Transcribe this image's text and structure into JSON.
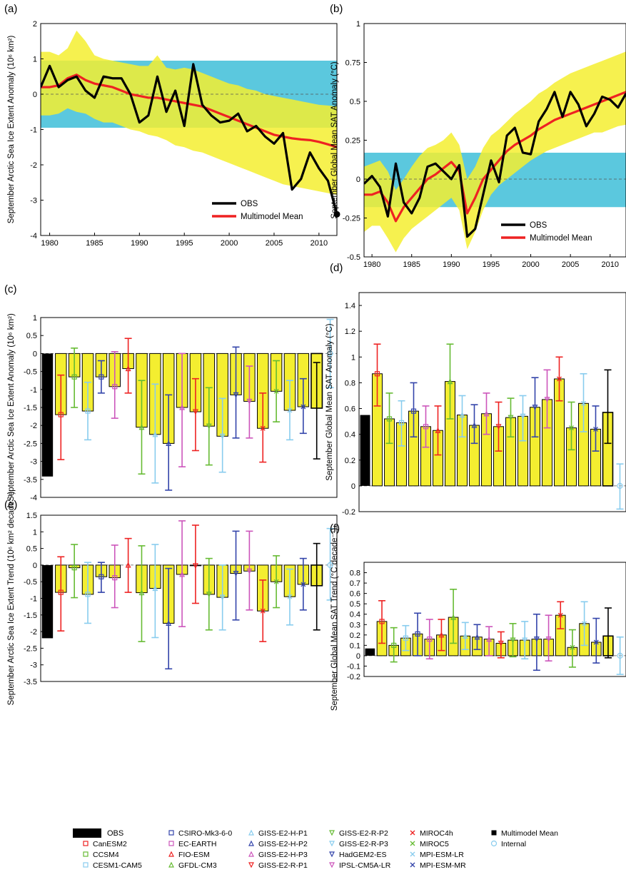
{
  "chart_data": [
    {
      "panel": "(a)",
      "type": "line",
      "ylabel": "September Arctic Sea Ice Extent Anomaly (10⁶ km²)",
      "xlim": [
        1979,
        2012
      ],
      "ylim": [
        -4,
        2
      ],
      "xticks": [
        1980,
        1985,
        1990,
        1995,
        2000,
        2005,
        2010
      ],
      "yticks": [
        -4,
        -3,
        -2,
        -1,
        0,
        1,
        2
      ],
      "x": [
        1979,
        1980,
        1981,
        1982,
        1983,
        1984,
        1985,
        1986,
        1987,
        1988,
        1989,
        1990,
        1991,
        1992,
        1993,
        1994,
        1995,
        1996,
        1997,
        1998,
        1999,
        2000,
        2001,
        2002,
        2003,
        2004,
        2005,
        2006,
        2007,
        2008,
        2009,
        2010,
        2011,
        2012
      ],
      "series": [
        {
          "name": "OBS",
          "color": "#000000",
          "values": [
            0.2,
            0.8,
            0.2,
            0.4,
            0.5,
            0.1,
            -0.1,
            0.5,
            0.45,
            0.45,
            0.0,
            -0.8,
            -0.6,
            0.5,
            -0.5,
            0.1,
            -0.9,
            0.85,
            -0.3,
            -0.6,
            -0.8,
            -0.75,
            -0.55,
            -1.05,
            -0.9,
            -1.2,
            -1.4,
            -1.1,
            -2.7,
            -2.4,
            -1.65,
            -2.1,
            -2.45,
            -3.4
          ]
        },
        {
          "name": "Multimodel Mean",
          "color": "#ee2222",
          "values": [
            0.2,
            0.2,
            0.25,
            0.45,
            0.55,
            0.4,
            0.3,
            0.25,
            0.2,
            0.1,
            0.0,
            -0.05,
            -0.1,
            -0.1,
            -0.15,
            -0.2,
            -0.25,
            -0.3,
            -0.35,
            -0.45,
            -0.55,
            -0.65,
            -0.75,
            -0.85,
            -0.95,
            -1.05,
            -1.15,
            -1.2,
            -1.25,
            -1.28,
            -1.3,
            -1.35,
            -1.42,
            -1.5
          ]
        }
      ],
      "bands": [
        {
          "color": "#5bc8de",
          "lower": -0.95,
          "upper": 0.95
        },
        {
          "color": "#f4ee30",
          "lower": [
            -0.6,
            -0.6,
            -0.55,
            -0.4,
            -0.5,
            -0.55,
            -0.7,
            -0.8,
            -0.8,
            -0.9,
            -1.0,
            -1.05,
            -1.15,
            -1.2,
            -1.3,
            -1.45,
            -1.5,
            -1.6,
            -1.65,
            -1.75,
            -1.85,
            -1.95,
            -2.05,
            -2.15,
            -2.25,
            -2.35,
            -2.45,
            -2.55,
            -2.6,
            -2.65,
            -2.7,
            -2.75,
            -2.8,
            -2.85
          ],
          "upper": [
            1.2,
            1.2,
            1.1,
            1.3,
            1.8,
            1.5,
            1.1,
            1.0,
            0.95,
            0.9,
            0.85,
            0.8,
            0.8,
            1.1,
            0.75,
            0.7,
            0.75,
            0.7,
            0.6,
            0.5,
            0.4,
            0.3,
            0.25,
            0.15,
            0.1,
            0.0,
            -0.05,
            -0.1,
            -0.15,
            -0.2,
            -0.25,
            -0.3,
            -0.32,
            -0.35
          ]
        }
      ],
      "legend": [
        "OBS",
        "Multimodel Mean"
      ],
      "legend_position": "bottom-right"
    },
    {
      "panel": "(b)",
      "type": "line",
      "ylabel": "September Global Mean SAT Anomaly (°C)",
      "xlim": [
        1979,
        2012
      ],
      "ylim": [
        -0.5,
        1
      ],
      "xticks": [
        1980,
        1985,
        1990,
        1995,
        2000,
        2005,
        2010
      ],
      "yticks": [
        -0.5,
        -0.25,
        0,
        0.25,
        0.5,
        0.75,
        1
      ],
      "x": [
        1979,
        1980,
        1981,
        1982,
        1983,
        1984,
        1985,
        1986,
        1987,
        1988,
        1989,
        1990,
        1991,
        1992,
        1993,
        1994,
        1995,
        1996,
        1997,
        1998,
        1999,
        2000,
        2001,
        2002,
        2003,
        2004,
        2005,
        2006,
        2007,
        2008,
        2009,
        2010,
        2011,
        2012
      ],
      "series": [
        {
          "name": "OBS",
          "color": "#000000",
          "values": [
            -0.03,
            0.02,
            -0.05,
            -0.24,
            0.1,
            -0.15,
            -0.22,
            -0.12,
            0.08,
            0.1,
            0.05,
            0.0,
            0.09,
            -0.37,
            -0.32,
            -0.1,
            0.12,
            -0.02,
            0.28,
            0.33,
            0.17,
            0.16,
            0.37,
            0.45,
            0.56,
            0.4,
            0.56,
            0.48,
            0.34,
            0.42,
            0.53,
            0.51,
            0.46,
            0.55
          ]
        },
        {
          "name": "Multimodel Mean",
          "color": "#ee2222",
          "values": [
            -0.1,
            -0.1,
            -0.08,
            -0.15,
            -0.27,
            -0.18,
            -0.12,
            -0.06,
            0.0,
            0.03,
            0.07,
            0.11,
            0.05,
            -0.22,
            -0.12,
            0.0,
            0.06,
            0.12,
            0.18,
            0.22,
            0.25,
            0.28,
            0.32,
            0.35,
            0.38,
            0.4,
            0.42,
            0.44,
            0.46,
            0.48,
            0.5,
            0.52,
            0.54,
            0.56
          ]
        }
      ],
      "bands": [
        {
          "color": "#5bc8de",
          "lower": -0.18,
          "upper": 0.17
        },
        {
          "color": "#f4ee30",
          "lower": [
            -0.34,
            -0.3,
            -0.3,
            -0.38,
            -0.47,
            -0.38,
            -0.32,
            -0.28,
            -0.24,
            -0.2,
            -0.16,
            -0.12,
            -0.2,
            -0.45,
            -0.34,
            -0.2,
            -0.1,
            -0.04,
            0.0,
            0.04,
            0.08,
            0.12,
            0.15,
            0.18,
            0.2,
            0.22,
            0.24,
            0.26,
            0.28,
            0.3,
            0.3,
            0.32,
            0.34,
            0.35
          ],
          "upper": [
            0.08,
            0.1,
            0.12,
            0.05,
            -0.07,
            0.0,
            0.08,
            0.15,
            0.2,
            0.22,
            0.25,
            0.3,
            0.22,
            0.0,
            0.08,
            0.2,
            0.28,
            0.32,
            0.37,
            0.42,
            0.46,
            0.5,
            0.55,
            0.58,
            0.62,
            0.65,
            0.68,
            0.7,
            0.72,
            0.74,
            0.76,
            0.78,
            0.8,
            0.82
          ]
        }
      ],
      "legend": [
        "OBS",
        "Multimodel Mean"
      ],
      "legend_position": "bottom-right"
    },
    {
      "panel": "(c)",
      "type": "bar",
      "ylabel": "September Arctic Sea Ice Extent Anomaly (10⁶ km²)",
      "ylim": [
        -4,
        1
      ],
      "yticks": [
        -4,
        -3.5,
        -3,
        -2.5,
        -2,
        -1.5,
        -1,
        -0.5,
        0,
        0.5,
        1
      ],
      "obs": -3.42,
      "values": [
        -1.7,
        -0.65,
        -1.6,
        -0.65,
        -0.92,
        -0.42,
        -2.05,
        -2.25,
        -2.5,
        -1.5,
        -1.62,
        -2.02,
        -2.3,
        -1.15,
        -1.33,
        -2.08,
        -1.05,
        -1.58,
        -1.48,
        -1.52
      ],
      "error_low": [
        -2.95,
        -1.5,
        -2.4,
        -1.1,
        -1.8,
        -1.1,
        -3.35,
        -3.6,
        -3.8,
        -3.15,
        -2.7,
        -3.1,
        -3.3,
        -2.35,
        -2.35,
        -3.02,
        -1.9,
        -2.4,
        -2.22,
        -2.93
      ],
      "error_high": [
        -0.6,
        0.15,
        -0.8,
        -0.2,
        0.05,
        0.42,
        -0.75,
        -0.85,
        -1.15,
        0.0,
        -0.7,
        -0.95,
        -1.25,
        0.18,
        -0.35,
        -1.1,
        -0.2,
        -0.75,
        -0.7,
        -0.25
      ],
      "internal": {
        "value": 0.0,
        "low": -0.95,
        "high": 0.95
      }
    },
    {
      "panel": "(d)",
      "type": "bar",
      "ylabel": "September Global Mean SAT Anomaly (°C)",
      "ylim": [
        -0.2,
        1.5
      ],
      "yticks": [
        -0.2,
        0,
        0.2,
        0.4,
        0.6,
        0.8,
        1,
        1.2,
        1.4
      ],
      "obs": 0.55,
      "values": [
        0.87,
        0.52,
        0.49,
        0.58,
        0.46,
        0.43,
        0.81,
        0.55,
        0.47,
        0.56,
        0.46,
        0.53,
        0.54,
        0.61,
        0.67,
        0.83,
        0.45,
        0.64,
        0.44,
        0.57
      ],
      "error_low": [
        0.62,
        0.33,
        0.31,
        0.38,
        0.3,
        0.24,
        0.52,
        0.38,
        0.33,
        0.4,
        0.27,
        0.38,
        0.35,
        0.38,
        0.45,
        0.66,
        0.28,
        0.42,
        0.27,
        0.33
      ],
      "error_high": [
        1.1,
        0.72,
        0.66,
        0.8,
        0.62,
        0.62,
        1.1,
        0.7,
        0.63,
        0.72,
        0.65,
        0.68,
        0.7,
        0.84,
        0.9,
        1.0,
        0.65,
        0.87,
        0.62,
        0.9
      ],
      "internal": {
        "value": 0.0,
        "low": -0.18,
        "high": 0.17
      }
    },
    {
      "panel": "(e)",
      "type": "bar",
      "ylabel": "September Arctic Sea Ice Extent Trend (10⁶ km² decade⁻¹)",
      "ylim": [
        -3.5,
        1.5
      ],
      "yticks": [
        -3.5,
        -3,
        -2.5,
        -2,
        -1.5,
        -1,
        -0.5,
        0,
        0.5,
        1,
        1.5
      ],
      "obs": -2.2,
      "values": [
        -0.82,
        -0.08,
        -0.88,
        -0.35,
        -0.38,
        0.0,
        -0.83,
        -0.7,
        -1.75,
        -0.28,
        -0.02,
        -0.88,
        -0.97,
        -0.25,
        -0.18,
        -1.38,
        -0.5,
        -0.95,
        -0.58,
        -0.62
      ],
      "error_low": [
        -1.98,
        -0.98,
        -1.75,
        -0.82,
        -1.28,
        -0.82,
        -2.3,
        -2.18,
        -3.12,
        -1.85,
        -1.15,
        -1.95,
        -1.95,
        -1.65,
        -1.35,
        -2.3,
        -1.28,
        -1.8,
        -1.35,
        -1.95
      ],
      "error_high": [
        0.25,
        0.62,
        0.08,
        0.08,
        0.6,
        0.8,
        0.58,
        0.62,
        -0.1,
        1.33,
        1.2,
        0.2,
        0.0,
        1.02,
        1.02,
        -0.45,
        0.28,
        -0.12,
        0.2,
        0.65
      ],
      "internal": {
        "value": 0.0,
        "low": -1.05,
        "high": 1.1
      }
    },
    {
      "panel": "(f)",
      "type": "bar",
      "ylabel": "September Global Mean SAT Trend (°C decade⁻¹)",
      "ylim": [
        -0.2,
        0.9
      ],
      "yticks": [
        -0.2,
        -0.1,
        0,
        0.1,
        0.2,
        0.3,
        0.4,
        0.5,
        0.6,
        0.7,
        0.8
      ],
      "obs": 0.07,
      "values": [
        0.33,
        0.1,
        0.17,
        0.21,
        0.16,
        0.2,
        0.37,
        0.19,
        0.18,
        0.16,
        0.12,
        0.15,
        0.15,
        0.16,
        0.16,
        0.39,
        0.08,
        0.31,
        0.13,
        0.19
      ],
      "error_low": [
        0.12,
        -0.06,
        0.05,
        0.0,
        -0.03,
        0.05,
        0.12,
        0.06,
        0.06,
        0.0,
        -0.02,
        -0.01,
        -0.03,
        -0.14,
        -0.05,
        0.26,
        -0.11,
        0.1,
        -0.07,
        -0.02
      ],
      "error_high": [
        0.53,
        0.27,
        0.29,
        0.41,
        0.35,
        0.35,
        0.64,
        0.32,
        0.3,
        0.28,
        0.23,
        0.31,
        0.33,
        0.4,
        0.39,
        0.52,
        0.25,
        0.52,
        0.36,
        0.46
      ],
      "internal": {
        "value": 0.0,
        "low": -0.18,
        "high": 0.18
      }
    }
  ],
  "models": [
    {
      "name": "CanESM2",
      "color": "#ee2222",
      "marker": "square"
    },
    {
      "name": "CCSM4",
      "color": "#66bb33",
      "marker": "square"
    },
    {
      "name": "CESM1-CAM5",
      "color": "#88ccee",
      "marker": "square"
    },
    {
      "name": "CSIRO-Mk3-6-0",
      "color": "#3344aa",
      "marker": "square"
    },
    {
      "name": "EC-EARTH",
      "color": "#cc55bb",
      "marker": "square"
    },
    {
      "name": "FIO-ESM",
      "color": "#ee2222",
      "marker": "triangle-up"
    },
    {
      "name": "GFDL-CM3",
      "color": "#66bb33",
      "marker": "triangle-up"
    },
    {
      "name": "GISS-E2-H-P1",
      "color": "#88ccee",
      "marker": "triangle-up"
    },
    {
      "name": "GISS-E2-H-P2",
      "color": "#3344aa",
      "marker": "triangle-up"
    },
    {
      "name": "GISS-E2-H-P3",
      "color": "#cc55bb",
      "marker": "triangle-up"
    },
    {
      "name": "GISS-E2-R-P1",
      "color": "#ee2222",
      "marker": "triangle-down"
    },
    {
      "name": "GISS-E2-R-P2",
      "color": "#66bb33",
      "marker": "triangle-down"
    },
    {
      "name": "GISS-E2-R-P3",
      "color": "#88ccee",
      "marker": "triangle-down"
    },
    {
      "name": "HadGEM2-ES",
      "color": "#3344aa",
      "marker": "triangle-down"
    },
    {
      "name": "IPSL-CM5A-LR",
      "color": "#cc55bb",
      "marker": "triangle-down"
    },
    {
      "name": "MIROC4h",
      "color": "#ee2222",
      "marker": "x"
    },
    {
      "name": "MIROC5",
      "color": "#66bb33",
      "marker": "x"
    },
    {
      "name": "MPI-ESM-LR",
      "color": "#88ccee",
      "marker": "x"
    },
    {
      "name": "MPI-ESM-MR",
      "color": "#3344aa",
      "marker": "x"
    },
    {
      "name": "Multimodel Mean",
      "color": "#000000",
      "marker": "square-filled"
    }
  ],
  "legend": {
    "obs_label": "OBS",
    "internal_label": "Internal",
    "internal_color": "#88ccee"
  },
  "colors": {
    "bar_fill": "#f4ee30",
    "obs": "#000000",
    "zero_line": "#555555"
  }
}
